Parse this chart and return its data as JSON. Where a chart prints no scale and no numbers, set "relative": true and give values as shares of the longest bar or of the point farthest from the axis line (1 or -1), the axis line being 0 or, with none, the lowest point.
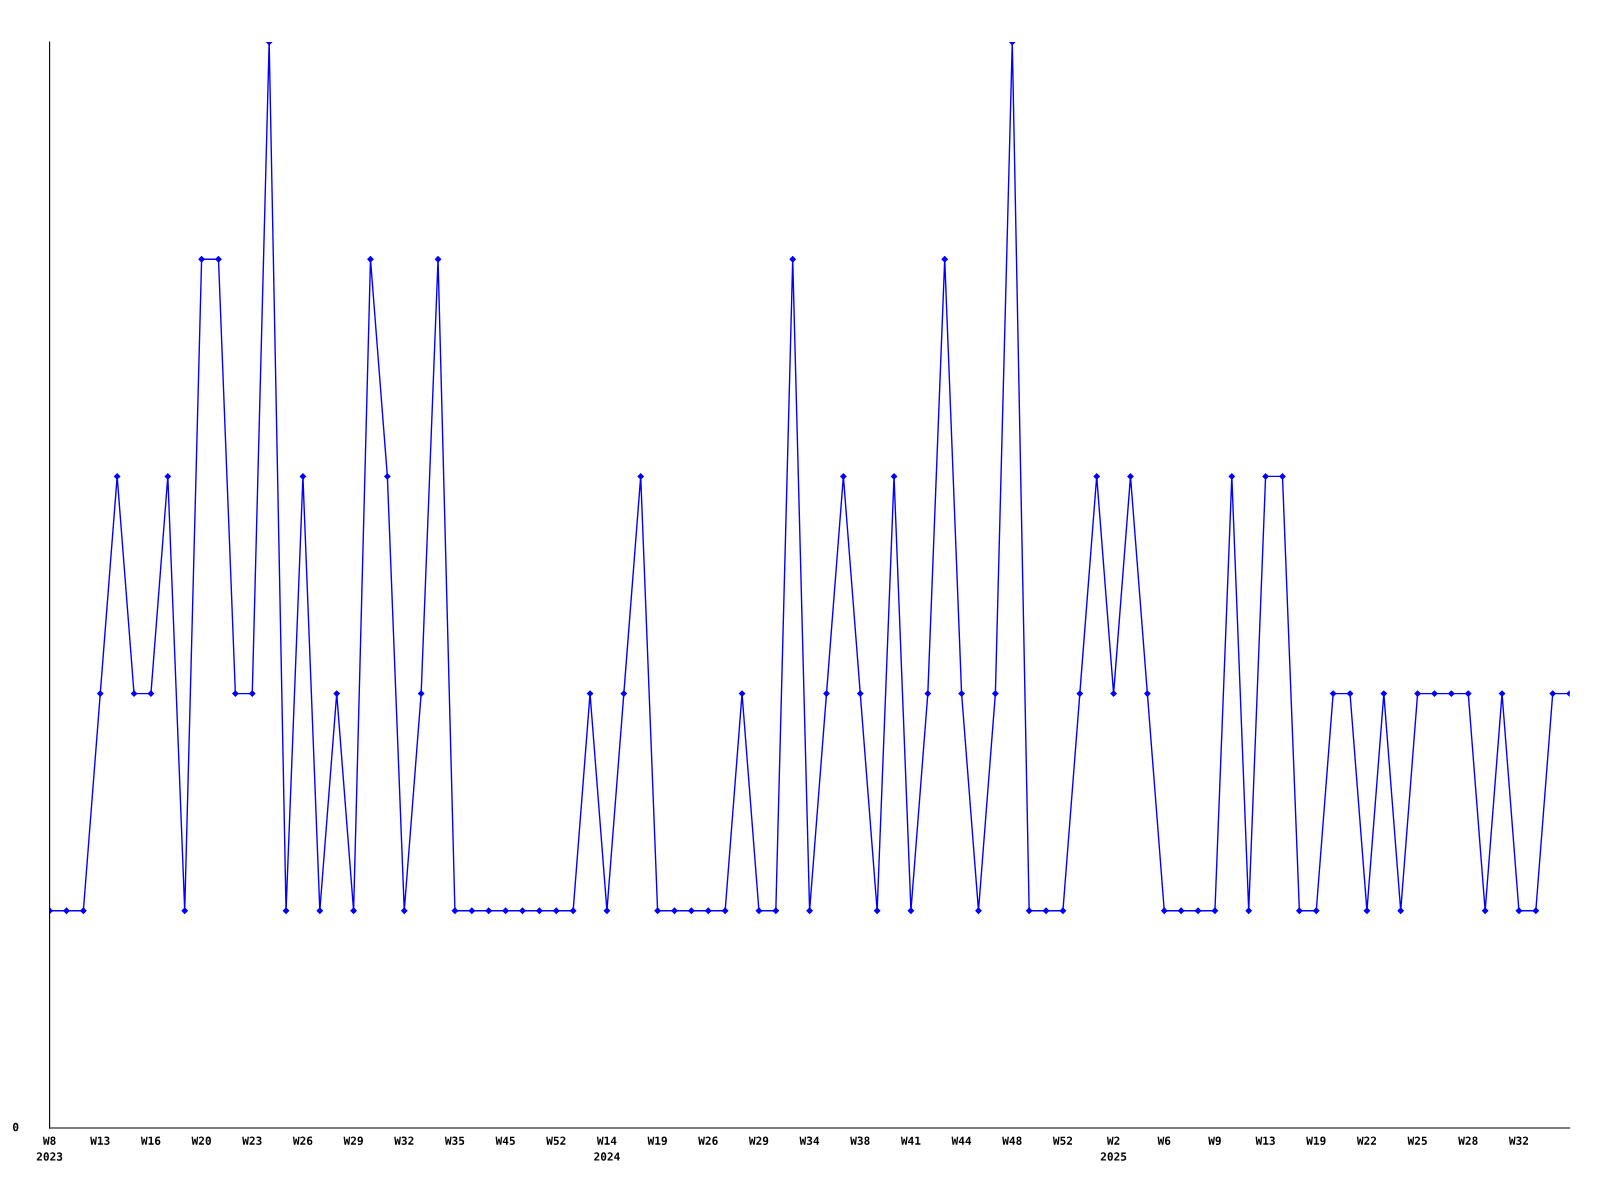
{
  "chart_data": {
    "type": "line",
    "relative": true,
    "categories": [
      "W8\n2023",
      null,
      null,
      "W13",
      null,
      null,
      "W16",
      null,
      null,
      "W20",
      null,
      null,
      "W23",
      null,
      null,
      "W26",
      null,
      null,
      "W29",
      null,
      null,
      "W32",
      null,
      null,
      "W35",
      null,
      null,
      "W45",
      null,
      null,
      "W52",
      null,
      null,
      "W14\n2024",
      null,
      null,
      "W19",
      null,
      null,
      "W26",
      null,
      null,
      "W29",
      null,
      null,
      "W34",
      null,
      null,
      "W38",
      null,
      null,
      "W41",
      null,
      null,
      "W44",
      null,
      null,
      "W48",
      null,
      null,
      "W52",
      null,
      null,
      "W2\n2025",
      null,
      null,
      "W6",
      null,
      null,
      "W9",
      null,
      null,
      "W13",
      null,
      null,
      "W19",
      null,
      null,
      "W22",
      null,
      null,
      "W25",
      null,
      null,
      "W28",
      null,
      null,
      "W32",
      null,
      null,
      null
    ],
    "series": [
      {
        "color": "#0000ff",
        "values": [
          0.2,
          0.2,
          0.2,
          0.4,
          0.6,
          0.4,
          0.4,
          0.6,
          0.2,
          0.8,
          0.8,
          0.4,
          0.4,
          1,
          0.2,
          0.6,
          0.2,
          0.4,
          0.2,
          0.8,
          0.6,
          0.2,
          0.4,
          0.8,
          0.2,
          0.2,
          0.2,
          0.2,
          0.2,
          0.2,
          0.2,
          0.2,
          0.4,
          0.2,
          0.4,
          0.6,
          0.2,
          0.2,
          0.2,
          0.2,
          0.2,
          0.4,
          0.2,
          0.2,
          0.8,
          0.2,
          0.4,
          0.6,
          0.4,
          0.2,
          0.6,
          0.2,
          0.4,
          0.8,
          0.4,
          0.2,
          0.4,
          1,
          0.2,
          0.2,
          0.2,
          0.4,
          0.6,
          0.4,
          0.6,
          0.4,
          0.2,
          0.2,
          0.2,
          0.2,
          0.6,
          0.2,
          0.6,
          0.6,
          0.2,
          0.2,
          0.4,
          0.4,
          0.2,
          0.4,
          0.2,
          0.4,
          0.4,
          0.4,
          0.4,
          0.2,
          0.4,
          0.2,
          0.2,
          0.4,
          0.4
        ]
      }
    ],
    "marker": "diamond",
    "line_style": "solid",
    "grid": false,
    "legend": false,
    "annotations": [
      "0"
    ]
  }
}
